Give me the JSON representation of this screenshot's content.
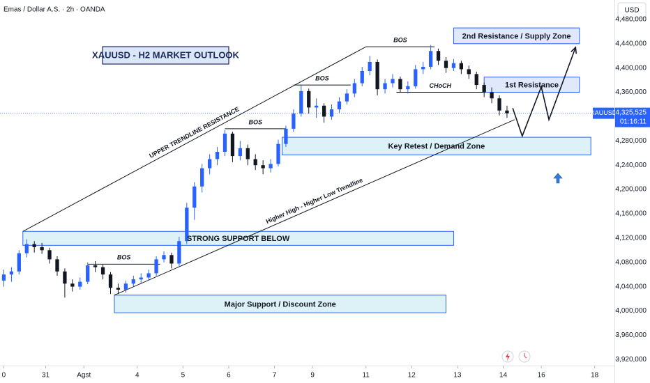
{
  "chart_data": {
    "type": "candlestick",
    "header": "Emas / Dollar A.S. · 2h · OANDA",
    "currency": "USD",
    "title": "XAUUSD - H2 MARKET OUTLOOK",
    "symbol": "XAUUSD",
    "last_price": {
      "value": 4325525,
      "label": "4,325,525"
    },
    "countdown": "01:16:11",
    "up_color": "#2962ff",
    "down_color": "#131722",
    "xlim": [
      -1,
      160
    ],
    "ylim": [
      3910000,
      4512000
    ],
    "grid": false,
    "xticks": [
      0,
      {
        "value": 11,
        "label": "31"
      },
      {
        "value": 21,
        "label": "Agst"
      },
      {
        "value": 35,
        "label": "4"
      },
      {
        "value": 47,
        "label": "5"
      },
      {
        "value": 59,
        "label": "6"
      },
      {
        "value": 71,
        "label": "7"
      },
      {
        "value": 81,
        "label": "9"
      },
      {
        "value": 95,
        "label": "11"
      },
      {
        "value": 107,
        "label": "12"
      },
      {
        "value": 119,
        "label": "13"
      },
      {
        "value": 131,
        "label": "14"
      },
      {
        "value": 141,
        "label": "16"
      },
      {
        "value": 155,
        "label": "18"
      }
    ],
    "yticks": [
      {
        "value": 3920000,
        "label": "3,920,000"
      },
      {
        "value": 3960000,
        "label": "3,960,000"
      },
      {
        "value": 4000000,
        "label": "4,000,000"
      },
      {
        "value": 4040000,
        "label": "4,040,000"
      },
      {
        "value": 4080000,
        "label": "4,080,000"
      },
      {
        "value": 4120000,
        "label": "4,120,000"
      },
      {
        "value": 4160000,
        "label": "4,160,000"
      },
      {
        "value": 4200000,
        "label": "4,200,000"
      },
      {
        "value": 4240000,
        "label": "4,240,000"
      },
      {
        "value": 4280000,
        "label": "4,280,000"
      },
      {
        "value": 4360000,
        "label": "4,360,000"
      },
      {
        "value": 4400000,
        "label": "4,400,000"
      },
      {
        "value": 4440000,
        "label": "4,440,000"
      },
      {
        "value": 4480000,
        "label": "4,480,000"
      }
    ],
    "x": [
      0,
      2,
      4,
      6,
      8,
      10,
      12,
      14,
      16,
      18,
      20,
      22,
      24,
      26,
      28,
      30,
      32,
      34,
      36,
      38,
      40,
      42,
      44,
      46,
      48,
      50,
      52,
      54,
      56,
      58,
      60,
      62,
      64,
      66,
      68,
      70,
      72,
      74,
      76,
      78,
      80,
      82,
      84,
      86,
      88,
      90,
      92,
      94,
      96,
      98,
      100,
      102,
      104,
      106,
      108,
      110,
      112,
      114,
      116,
      118,
      120,
      122,
      124,
      126,
      128,
      130,
      132
    ],
    "ohlc": [
      [
        4050000,
        4068000,
        4040000,
        4060000
      ],
      [
        4060000,
        4072000,
        4048000,
        4065000
      ],
      [
        4065000,
        4100000,
        4060000,
        4095000
      ],
      [
        4095000,
        4118000,
        4088000,
        4110000
      ],
      [
        4110000,
        4115000,
        4096000,
        4105000
      ],
      [
        4105000,
        4112000,
        4094000,
        4100000
      ],
      [
        4100000,
        4104000,
        4078000,
        4085000
      ],
      [
        4085000,
        4090000,
        4058000,
        4065000
      ],
      [
        4065000,
        4070000,
        4022000,
        4045000
      ],
      [
        4045000,
        4052000,
        4032000,
        4040000
      ],
      [
        4040000,
        4055000,
        4035000,
        4048000
      ],
      [
        4048000,
        4080000,
        4044000,
        4075000
      ],
      [
        4075000,
        4082000,
        4064000,
        4072000
      ],
      [
        4072000,
        4076000,
        4052000,
        4060000
      ],
      [
        4060000,
        4064000,
        4028000,
        4038000
      ],
      [
        4038000,
        4045000,
        4028000,
        4035000
      ],
      [
        4035000,
        4050000,
        4030000,
        4045000
      ],
      [
        4045000,
        4058000,
        4040000,
        4052000
      ],
      [
        4052000,
        4062000,
        4046000,
        4055000
      ],
      [
        4055000,
        4068000,
        4050000,
        4062000
      ],
      [
        4062000,
        4090000,
        4058000,
        4085000
      ],
      [
        4085000,
        4098000,
        4080000,
        4092000
      ],
      [
        4092000,
        4096000,
        4070000,
        4078000
      ],
      [
        4078000,
        4122000,
        4074000,
        4115000
      ],
      [
        4115000,
        4178000,
        4110000,
        4170000
      ],
      [
        4170000,
        4212000,
        4150000,
        4205000
      ],
      [
        4205000,
        4242000,
        4195000,
        4235000
      ],
      [
        4235000,
        4258000,
        4225000,
        4250000
      ],
      [
        4250000,
        4270000,
        4240000,
        4262000
      ],
      [
        4262000,
        4298000,
        4255000,
        4292000
      ],
      [
        4292000,
        4295000,
        4245000,
        4255000
      ],
      [
        4255000,
        4280000,
        4248000,
        4268000
      ],
      [
        4268000,
        4274000,
        4240000,
        4250000
      ],
      [
        4250000,
        4258000,
        4232000,
        4240000
      ],
      [
        4240000,
        4248000,
        4225000,
        4235000
      ],
      [
        4235000,
        4250000,
        4228000,
        4242000
      ],
      [
        4242000,
        4282000,
        4238000,
        4275000
      ],
      [
        4275000,
        4305000,
        4270000,
        4300000
      ],
      [
        4300000,
        4332000,
        4295000,
        4325000
      ],
      [
        4325000,
        4372000,
        4320000,
        4362000
      ],
      [
        4362000,
        4366000,
        4325000,
        4335000
      ],
      [
        4335000,
        4350000,
        4318000,
        4338000
      ],
      [
        4338000,
        4342000,
        4310000,
        4320000
      ],
      [
        4320000,
        4340000,
        4315000,
        4332000
      ],
      [
        4332000,
        4352000,
        4326000,
        4345000
      ],
      [
        4345000,
        4365000,
        4340000,
        4358000
      ],
      [
        4358000,
        4382000,
        4352000,
        4375000
      ],
      [
        4375000,
        4402000,
        4370000,
        4395000
      ],
      [
        4395000,
        4420000,
        4388000,
        4410000
      ],
      [
        4410000,
        4414000,
        4355000,
        4365000
      ],
      [
        4365000,
        4382000,
        4358000,
        4375000
      ],
      [
        4375000,
        4390000,
        4368000,
        4382000
      ],
      [
        4382000,
        4386000,
        4360000,
        4365000
      ],
      [
        4365000,
        4378000,
        4358000,
        4370000
      ],
      [
        4370000,
        4405000,
        4366000,
        4398000
      ],
      [
        4398000,
        4410000,
        4390000,
        4402000
      ],
      [
        4402000,
        4438000,
        4398000,
        4428000
      ],
      [
        4428000,
        4432000,
        4405000,
        4412000
      ],
      [
        4412000,
        4418000,
        4392000,
        4400000
      ],
      [
        4400000,
        4415000,
        4395000,
        4408000
      ],
      [
        4408000,
        4412000,
        4390000,
        4398000
      ],
      [
        4398000,
        4404000,
        4382000,
        4390000
      ],
      [
        4390000,
        4394000,
        4365000,
        4372000
      ],
      [
        4372000,
        4376000,
        4352000,
        4360000
      ],
      [
        4360000,
        4368000,
        4342000,
        4350000
      ],
      [
        4350000,
        4355000,
        4322000,
        4330000
      ],
      [
        4330000,
        4338000,
        4318000,
        4325525
      ]
    ],
    "zones": [
      {
        "label": "2nd Resistance / Supply Zone",
        "x": [
          118,
          151
        ],
        "y": [
          4440000,
          4466000
        ],
        "fill": "#dbe7fb",
        "border": "#2962ff"
      },
      {
        "label": "1st Resistance",
        "x": [
          126,
          151
        ],
        "y": [
          4360000,
          4385000
        ],
        "fill": "#dbe7fb",
        "border": "#2962ff"
      },
      {
        "label": "Key Retest / Demand Zone",
        "x": [
          73,
          154
        ],
        "y": [
          4257000,
          4286000
        ],
        "fill": "#d9f1f6",
        "border": "#2962ff"
      },
      {
        "label": "STRONG SUPPORT BELOW",
        "x": [
          5,
          118
        ],
        "y": [
          4108000,
          4131000
        ],
        "fill": "#d9f1f6",
        "border": "#2962ff"
      },
      {
        "label": "Major Support / Discount Zone",
        "x": [
          29,
          116
        ],
        "y": [
          3997000,
          4026000
        ],
        "fill": "#d9f1f6",
        "border": "#2962ff"
      }
    ],
    "levels": [
      {
        "label": "BOS",
        "x": [
          22,
          41
        ],
        "y": 4077000
      },
      {
        "label": "BOS",
        "x": [
          58,
          74
        ],
        "y": 4300000
      },
      {
        "label": "BOS",
        "x": [
          76,
          91
        ],
        "y": 4372000
      },
      {
        "label": "BOS",
        "x": [
          95,
          113
        ],
        "y": 4435000
      },
      {
        "label": "CHoCH",
        "x": [
          103,
          126
        ],
        "y": 4360000
      }
    ],
    "trendlines": [
      {
        "label": "UPPER TRENDLINE RESISTANCE",
        "x": [
          5,
          95
        ],
        "y": [
          4131000,
          4435000
        ]
      },
      {
        "label": "Higher High - Higher Low Trendline",
        "x": [
          29,
          134
        ],
        "y": [
          4026000,
          4315000
        ]
      }
    ],
    "projection": {
      "x": [
        133.5,
        136,
        141,
        143,
        150
      ],
      "y": [
        4334000,
        4288000,
        4369000,
        4315000,
        4434000
      ]
    }
  }
}
